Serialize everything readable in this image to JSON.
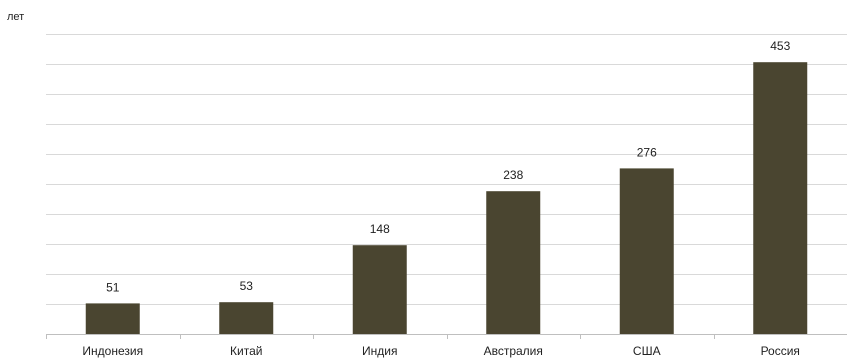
{
  "chart_data": {
    "type": "bar",
    "categories": [
      "Индонезия",
      "Китай",
      "Индия",
      "Австралия",
      "США",
      "Россия"
    ],
    "values": [
      51,
      53,
      148,
      238,
      276,
      453
    ],
    "ylabel": "лет",
    "ylim": [
      0,
      500
    ],
    "ytick_step": 50,
    "grid": true,
    "legend": "none",
    "bar_color": "#4a4530",
    "grid_color": "#d9d9d9",
    "axis_color": "#bfbfbf"
  }
}
